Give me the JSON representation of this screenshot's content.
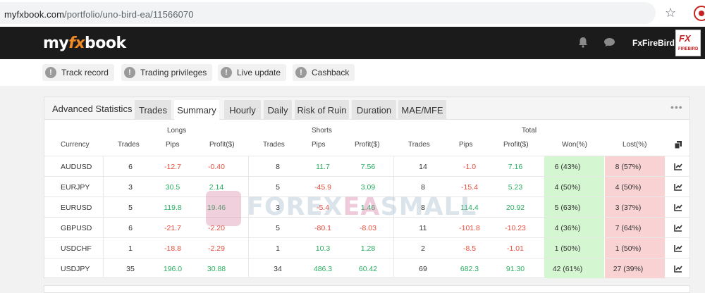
{
  "browser": {
    "url_domain": "myfxbook.com",
    "url_path": "/portfolio/uno-bird-ea/11566070"
  },
  "nav": {
    "logo_prefix": "my",
    "logo_fx": "fx",
    "logo_suffix": "book",
    "username": "FxFireBird",
    "avatar_text": "FX",
    "avatar_subtext": "FIREBIRD"
  },
  "badges": [
    {
      "label": "Track record"
    },
    {
      "label": "Trading privileges"
    },
    {
      "label": "Live update"
    },
    {
      "label": "Cashback"
    }
  ],
  "stats": {
    "title": "Advanced Statistics",
    "tabs": [
      {
        "label": "Trades",
        "active": false
      },
      {
        "label": "Summary",
        "active": true
      },
      {
        "label": "Hourly",
        "active": false
      },
      {
        "label": "Daily",
        "active": false
      },
      {
        "label": "Risk of Ruin",
        "active": false
      },
      {
        "label": "Duration",
        "active": false
      },
      {
        "label": "MAE/MFE",
        "active": false
      }
    ],
    "groups": {
      "longs": "Longs",
      "shorts": "Shorts",
      "total": "Total"
    },
    "columns": [
      "Currency",
      "Trades",
      "Pips",
      "Profit($)",
      "Trades",
      "Pips",
      "Profit($)",
      "Trades",
      "Pips",
      "Profit($)",
      "Won(%)",
      "Lost(%)"
    ],
    "rows": [
      [
        "AUDUSD",
        "6",
        "-12.7",
        "-0.40",
        "8",
        "11.7",
        "7.56",
        "14",
        "-1.0",
        "7.16",
        "6 (43%)",
        "8 (57%)"
      ],
      [
        "EURJPY",
        "3",
        "30.5",
        "2.14",
        "5",
        "-45.9",
        "3.09",
        "8",
        "-15.4",
        "5.23",
        "4 (50%)",
        "4 (50%)"
      ],
      [
        "EURUSD",
        "5",
        "119.8",
        "19.46",
        "3",
        "-5.4",
        "1.46",
        "8",
        "114.4",
        "20.92",
        "5 (63%)",
        "3 (37%)"
      ],
      [
        "GBPUSD",
        "6",
        "-21.7",
        "-2.20",
        "5",
        "-80.1",
        "-8.03",
        "11",
        "-101.8",
        "-10.23",
        "4 (36%)",
        "7 (64%)"
      ],
      [
        "USDCHF",
        "1",
        "-18.8",
        "-2.29",
        "1",
        "10.3",
        "1.28",
        "2",
        "-8.5",
        "-1.01",
        "1 (50%)",
        "1 (50%)"
      ],
      [
        "USDJPY",
        "35",
        "196.0",
        "30.88",
        "34",
        "486.3",
        "60.42",
        "69",
        "682.3",
        "91.30",
        "42 (61%)",
        "27 (39%)"
      ]
    ]
  },
  "watermark": {
    "text_a": "FOREX",
    "text_b": "EA",
    "text_c": "SMALL"
  },
  "colors": {
    "positive": "#27ae60",
    "negative": "#e74c3c",
    "won_bg": "#d4f6d0",
    "lost_bg": "#f9d3d3",
    "brand_orange": "#f08a24"
  }
}
